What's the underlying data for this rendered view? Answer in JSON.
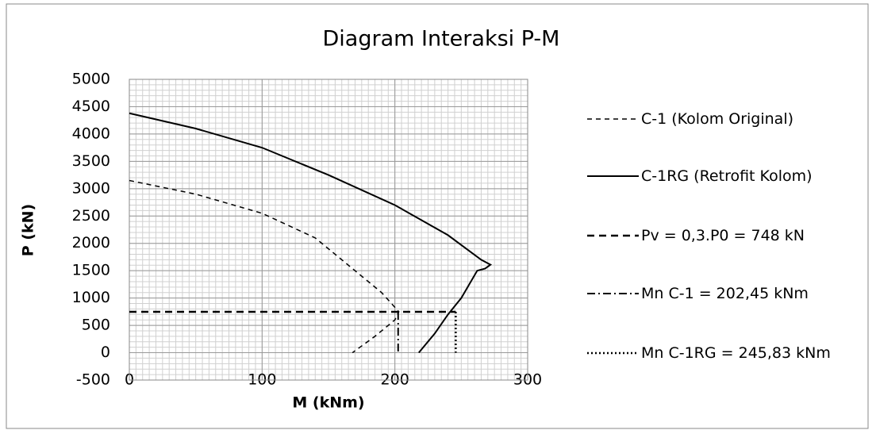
{
  "chart_data": {
    "type": "line",
    "title": "Diagram Interaksi P-M",
    "xlabel": "M (kNm)",
    "ylabel": "P (kN)",
    "xlim": [
      0,
      300
    ],
    "xticks": [
      0,
      100,
      200,
      300
    ],
    "ylim": [
      -500,
      5000
    ],
    "yticks": [
      -500,
      0,
      500,
      1000,
      1500,
      2000,
      2500,
      3000,
      3500,
      4000,
      4500,
      5000
    ],
    "grid": true,
    "minor_grid": true,
    "legend": "right",
    "series": [
      {
        "name": "C-1 (Kolom Original)",
        "color": "#000000",
        "style": "dashed",
        "x": [
          0,
          50,
          100,
          140,
          170,
          190,
          203,
          200,
          185,
          168
        ],
        "values": [
          3150,
          2900,
          2550,
          2100,
          1500,
          1100,
          750,
          600,
          300,
          0
        ]
      },
      {
        "name": "C-1RG (Retrofit Kolom)",
        "color": "#000000",
        "style": "solid",
        "x": [
          0,
          50,
          100,
          150,
          200,
          240,
          265,
          272,
          268,
          262,
          250,
          240,
          230,
          218
        ],
        "values": [
          4380,
          4100,
          3750,
          3250,
          2700,
          2150,
          1700,
          1610,
          1540,
          1500,
          1000,
          700,
          350,
          0
        ]
      },
      {
        "name": "Pv = 0,3.P0 = 748 kN",
        "color": "#000000",
        "style": "bold-dashed",
        "x": [
          0,
          245.83
        ],
        "values": [
          748,
          748
        ]
      },
      {
        "name": "Mn C-1 = 202,45 kNm",
        "color": "#000000",
        "style": "dash-dot",
        "x": [
          202.45,
          202.45
        ],
        "values": [
          748,
          0
        ]
      },
      {
        "name": "Mn C-1RG = 245,83 kNm",
        "color": "#000000",
        "style": "dotted",
        "x": [
          245.83,
          245.83
        ],
        "values": [
          748,
          0
        ]
      }
    ]
  }
}
